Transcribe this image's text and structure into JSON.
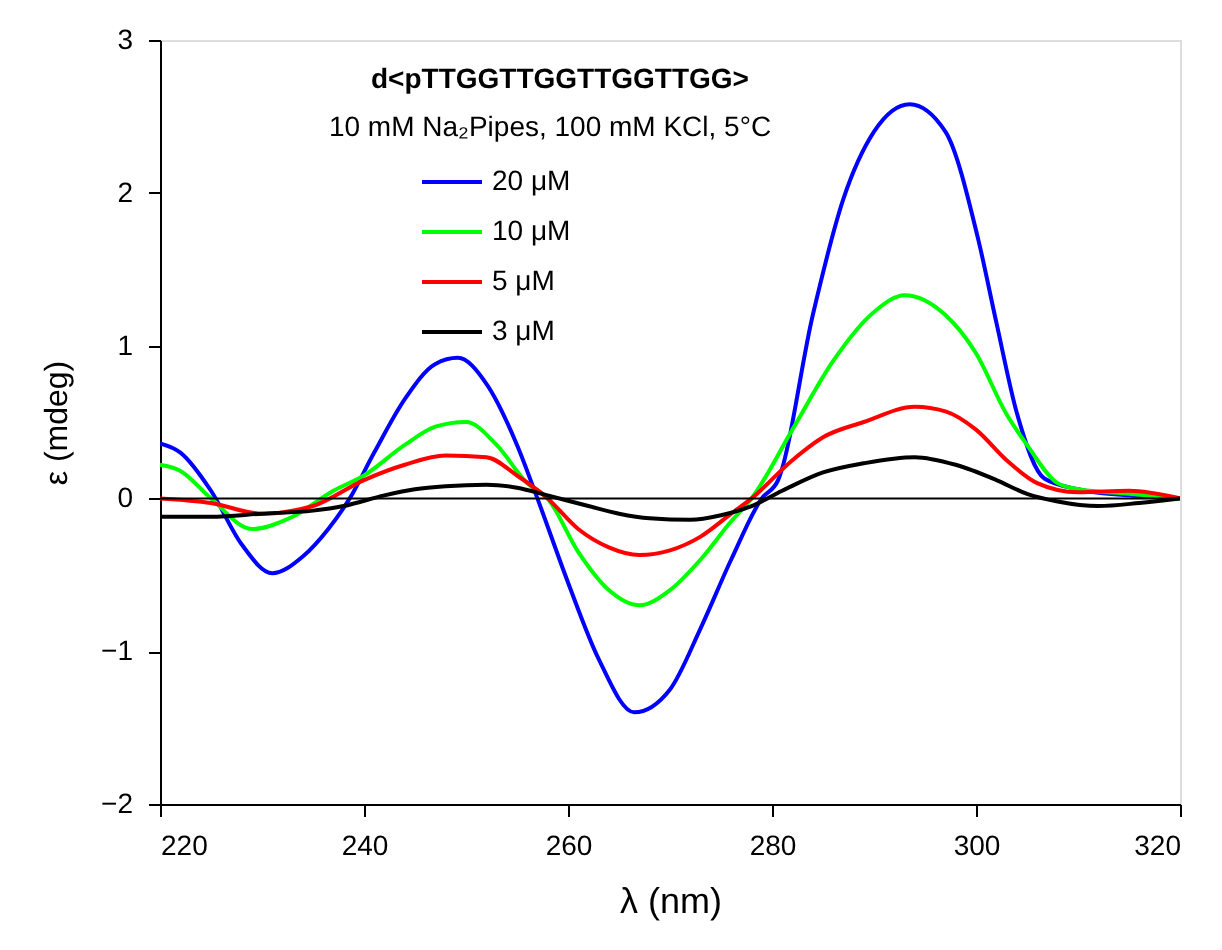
{
  "chart_data": {
    "type": "line",
    "xlabel": "λ (nm)",
    "ylabel": "ε (mdeg)",
    "annotations": [
      "d<pTTGGTTGGTTGGTTGG>",
      "10 mM Na₂Pipes, 100 mM KCl, 5°C"
    ],
    "xlim": [
      220,
      320
    ],
    "ylim": [
      -2,
      3
    ],
    "xticks": [
      220,
      240,
      260,
      280,
      300,
      320
    ],
    "yticks": [
      -2,
      -1,
      0,
      1,
      2,
      3
    ],
    "grid": false,
    "legend": "top left",
    "marker": "none",
    "line_style": "solid",
    "ref_lines": [
      {
        "axis": "y",
        "value": 0,
        "color": "#000000"
      }
    ],
    "series": [
      {
        "name": "20 μM",
        "color": "#0000ff",
        "x": [
          220,
          222,
          225,
          228,
          231,
          234,
          236.5,
          238.6,
          241,
          244,
          247,
          249.2,
          252,
          255,
          257,
          260,
          263,
          266.5,
          270,
          273,
          276,
          279,
          280.6,
          284,
          287,
          290,
          293.5,
          297,
          300.2,
          302,
          304,
          306.7,
          310,
          315,
          320
        ],
        "values": [
          0.36,
          0.3,
          0.05,
          -0.3,
          -0.49,
          -0.38,
          -0.2,
          0,
          0.3,
          0.65,
          0.88,
          0.92,
          0.75,
          0.35,
          0,
          -0.55,
          -1.05,
          -1.4,
          -1.25,
          -0.85,
          -0.4,
          0,
          0.12,
          1.2,
          1.96,
          2.4,
          2.58,
          2.4,
          1.7,
          1.15,
          0.56,
          0.13,
          0.06,
          0.02,
          0
        ]
      },
      {
        "name": "10 μM",
        "color": "#00ff00",
        "x": [
          220,
          222,
          225,
          229,
          233,
          237,
          240,
          244,
          247,
          250,
          253,
          256,
          258,
          261,
          264,
          267,
          270,
          273,
          276,
          278,
          282,
          286,
          290,
          293,
          297,
          300,
          303,
          305,
          308,
          310,
          315,
          320
        ],
        "values": [
          0.22,
          0.18,
          0,
          -0.2,
          -0.12,
          0.05,
          0.15,
          0.35,
          0.47,
          0.5,
          0.35,
          0.1,
          0,
          -0.35,
          -0.6,
          -0.7,
          -0.6,
          -0.4,
          -0.15,
          0,
          0.45,
          0.9,
          1.22,
          1.33,
          1.2,
          0.95,
          0.55,
          0.35,
          0.1,
          0.06,
          0.03,
          0
        ]
      },
      {
        "name": "5 μM",
        "color": "#ff0000",
        "x": [
          220,
          225,
          230,
          235,
          240,
          244,
          248,
          252,
          255,
          258,
          261,
          264,
          267,
          270,
          273,
          276,
          278,
          282,
          285,
          289,
          294,
          297,
          300,
          303,
          306,
          310,
          315,
          320
        ],
        "values": [
          0,
          -0.03,
          -0.1,
          -0.05,
          0.12,
          0.22,
          0.28,
          0.27,
          0.15,
          0,
          -0.2,
          -0.32,
          -0.37,
          -0.34,
          -0.25,
          -0.1,
          0,
          0.25,
          0.4,
          0.5,
          0.6,
          0.57,
          0.45,
          0.25,
          0.1,
          0.04,
          0.05,
          0
        ]
      },
      {
        "name": "3 μM",
        "color": "#000000",
        "x": [
          220,
          225,
          230,
          235,
          238,
          242,
          245,
          248,
          252,
          255,
          258,
          262,
          265,
          268,
          272,
          275,
          278,
          281,
          285,
          289,
          294,
          298,
          302,
          305,
          308,
          312,
          316,
          320
        ],
        "values": [
          -0.12,
          -0.12,
          -0.1,
          -0.08,
          -0.05,
          0.02,
          0.06,
          0.08,
          0.09,
          0.07,
          0.02,
          -0.05,
          -0.1,
          -0.13,
          -0.14,
          -0.11,
          -0.05,
          0.05,
          0.17,
          0.23,
          0.27,
          0.22,
          0.12,
          0.03,
          -0.02,
          -0.05,
          -0.03,
          0
        ]
      }
    ]
  }
}
